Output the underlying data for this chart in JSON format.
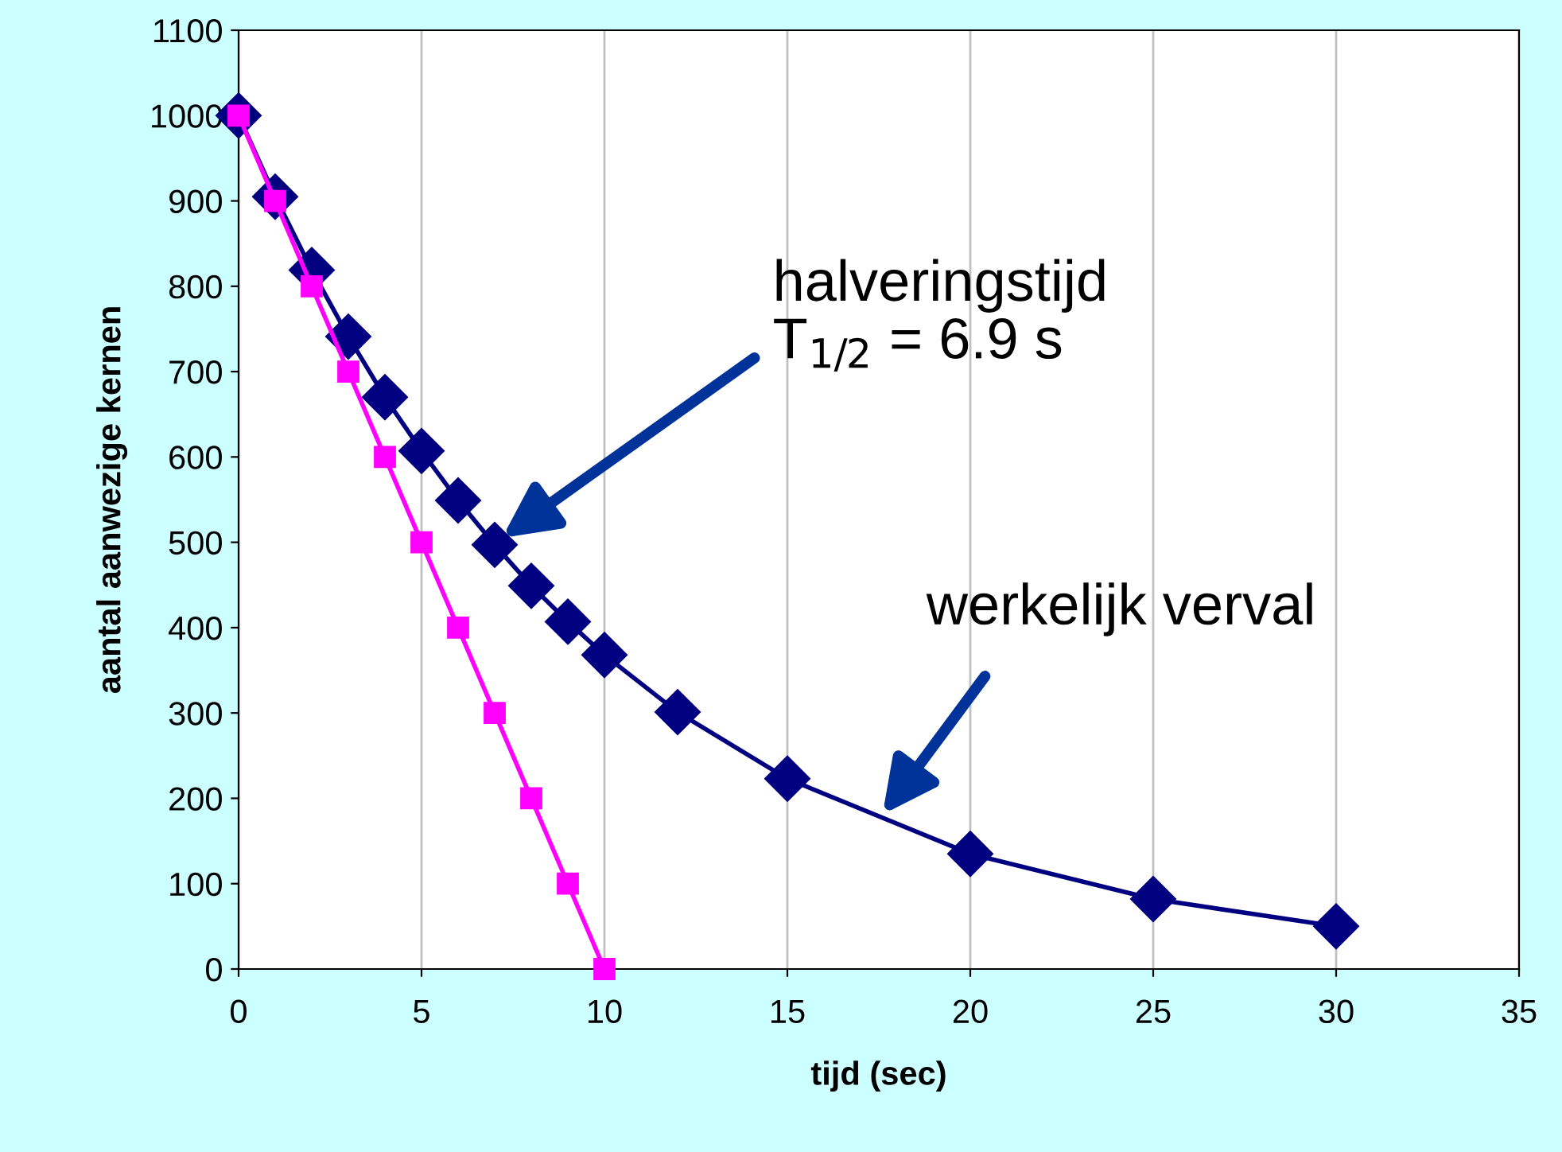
{
  "chart_data": {
    "type": "line",
    "xlabel": "tijd (sec)",
    "ylabel": "aantal aanwezige kernen",
    "xlim": [
      0,
      35
    ],
    "xticks": [
      0,
      5,
      10,
      15,
      20,
      25,
      30,
      35
    ],
    "ylim": [
      0,
      1100
    ],
    "yticks": [
      0,
      100,
      200,
      300,
      400,
      500,
      600,
      700,
      800,
      900,
      1000,
      1100
    ],
    "grid": "x",
    "legend": false,
    "series": [
      {
        "color": "#000080",
        "marker": "diamond",
        "x": [
          0,
          1,
          2,
          3,
          4,
          5,
          6,
          7,
          8,
          9,
          10,
          12,
          15,
          20,
          25,
          30
        ],
        "values": [
          1000,
          905,
          819,
          741,
          670,
          607,
          549,
          497,
          449,
          407,
          368,
          301,
          223,
          135,
          82,
          50
        ]
      },
      {
        "color": "#ff00ff",
        "marker": "square",
        "x": [
          0,
          1,
          2,
          3,
          4,
          5,
          6,
          7,
          8,
          9,
          10
        ],
        "values": [
          1000,
          900,
          800,
          700,
          600,
          500,
          400,
          300,
          200,
          100,
          0
        ]
      }
    ],
    "annotations": [
      "halveringstijd\nT$_{1/2}$ = 6.9 s",
      "werkelijk verval"
    ]
  }
}
